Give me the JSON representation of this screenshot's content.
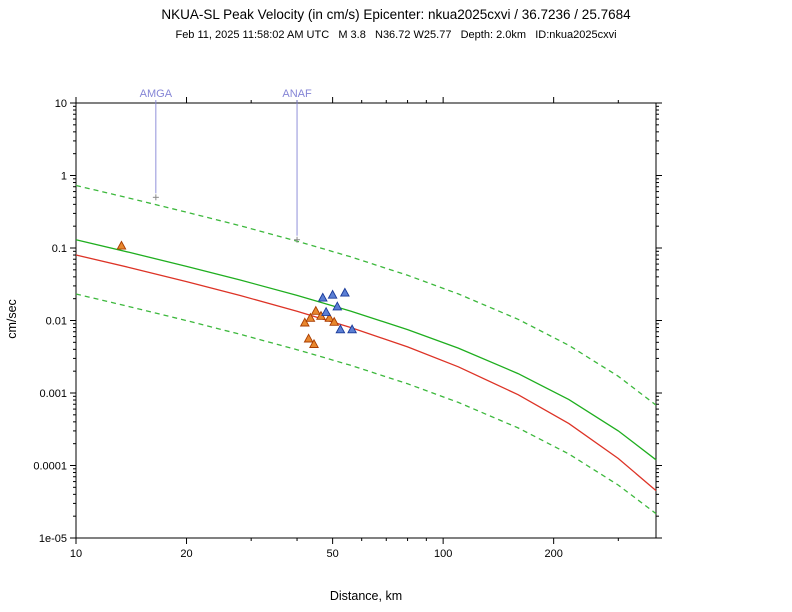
{
  "chart_data": {
    "type": "scatter",
    "title": "NKUA-SL Peak Velocity (in cm/s) Epicenter: nkua2025cxvi / 36.7236 / 25.7684",
    "subtitle": "Feb 11, 2025 11:58:02 AM UTC   M 3.8   N36.72 W25.77   Depth: 2.0km   ID:nkua2025cxvi",
    "xlabel": "Distance, km",
    "ylabel": "cm/sec",
    "x_scale": "log",
    "y_scale": "log",
    "xlim": [
      10,
      380
    ],
    "ylim": [
      1e-05,
      10
    ],
    "grid": false,
    "legend": null,
    "x_major_ticks": [
      {
        "v": 10,
        "label": "10"
      },
      {
        "v": 20,
        "label": "20"
      },
      {
        "v": 50,
        "label": "50"
      },
      {
        "v": 100,
        "label": "100"
      },
      {
        "v": 200,
        "label": "200"
      }
    ],
    "x_minor_ticks": [
      30,
      40,
      60,
      70,
      80,
      90,
      300
    ],
    "y_major_ticks": [
      {
        "v": 10,
        "label": "10"
      },
      {
        "v": 1,
        "label": "1"
      },
      {
        "v": 0.1,
        "label": "0.1"
      },
      {
        "v": 0.01,
        "label": "0.01"
      },
      {
        "v": 0.001,
        "label": "0.001"
      },
      {
        "v": 0.0001,
        "label": "0.0001"
      },
      {
        "v": 1e-05,
        "label": "1e-05"
      }
    ],
    "curves": [
      {
        "name": "prediction-upper-bound",
        "color": "#3cb83c",
        "style": "dashed",
        "x": [
          10,
          14,
          20,
          28,
          40,
          56,
          80,
          110,
          160,
          220,
          300,
          380
        ],
        "y": [
          0.728,
          0.487,
          0.312,
          0.203,
          0.124,
          0.0756,
          0.042,
          0.0233,
          0.0104,
          0.00453,
          0.0017,
          0.00068
        ]
      },
      {
        "name": "prediction-median",
        "color": "#1fae1f",
        "style": "solid",
        "x": [
          10,
          14,
          20,
          28,
          40,
          56,
          80,
          110,
          160,
          220,
          300,
          380
        ],
        "y": [
          0.13,
          0.087,
          0.0558,
          0.0362,
          0.0222,
          0.0135,
          0.0075,
          0.00416,
          0.00185,
          0.00081,
          0.0003,
          0.00012
        ]
      },
      {
        "name": "prediction-lower-bound",
        "color": "#3cb83c",
        "style": "dashed",
        "x": [
          10,
          14,
          20,
          28,
          40,
          56,
          80,
          110,
          160,
          220,
          300,
          380
        ],
        "y": [
          0.0232,
          0.0155,
          0.00996,
          0.00646,
          0.00396,
          0.00241,
          0.00134,
          0.000743,
          0.00033,
          0.000144,
          5.37e-05,
          2.17e-05
        ]
      },
      {
        "name": "secondary-attenuation",
        "color": "#dd3326",
        "style": "solid",
        "x": [
          10,
          14,
          20,
          28,
          40,
          56,
          80,
          110,
          160,
          220,
          300,
          380
        ],
        "y": [
          0.08,
          0.0536,
          0.0344,
          0.0221,
          0.0134,
          0.008,
          0.00432,
          0.0023,
          0.000947,
          0.000378,
          0.000125,
          4.5e-05
        ]
      }
    ],
    "markers": [
      {
        "name": "orange-component-stations",
        "shape": "triangle",
        "fill": "#e8872e",
        "edge": "#a83c00",
        "points": [
          [
            13.3,
            0.107
          ],
          [
            42,
            0.0093
          ],
          [
            43.5,
            0.0108
          ],
          [
            45,
            0.0135
          ],
          [
            46.5,
            0.0115
          ],
          [
            49,
            0.0108
          ],
          [
            50.5,
            0.0095
          ],
          [
            43,
            0.0056
          ],
          [
            44.5,
            0.0047
          ]
        ]
      },
      {
        "name": "blue-component-stations",
        "shape": "triangle",
        "fill": "#5b7fd4",
        "edge": "#1a3a99",
        "points": [
          [
            47,
            0.0205
          ],
          [
            50,
            0.0225
          ],
          [
            54,
            0.024
          ],
          [
            51.5,
            0.0155
          ],
          [
            48,
            0.013
          ],
          [
            52.5,
            0.0075
          ],
          [
            56.5,
            0.0075
          ]
        ]
      }
    ],
    "station_annotations": [
      {
        "label": "AMGA",
        "x": 16.5,
        "line_end_value": 0.5,
        "color": "#8585d6"
      },
      {
        "label": "ANAF",
        "x": 40,
        "line_end_value": 0.13,
        "color": "#8585d6"
      }
    ]
  }
}
